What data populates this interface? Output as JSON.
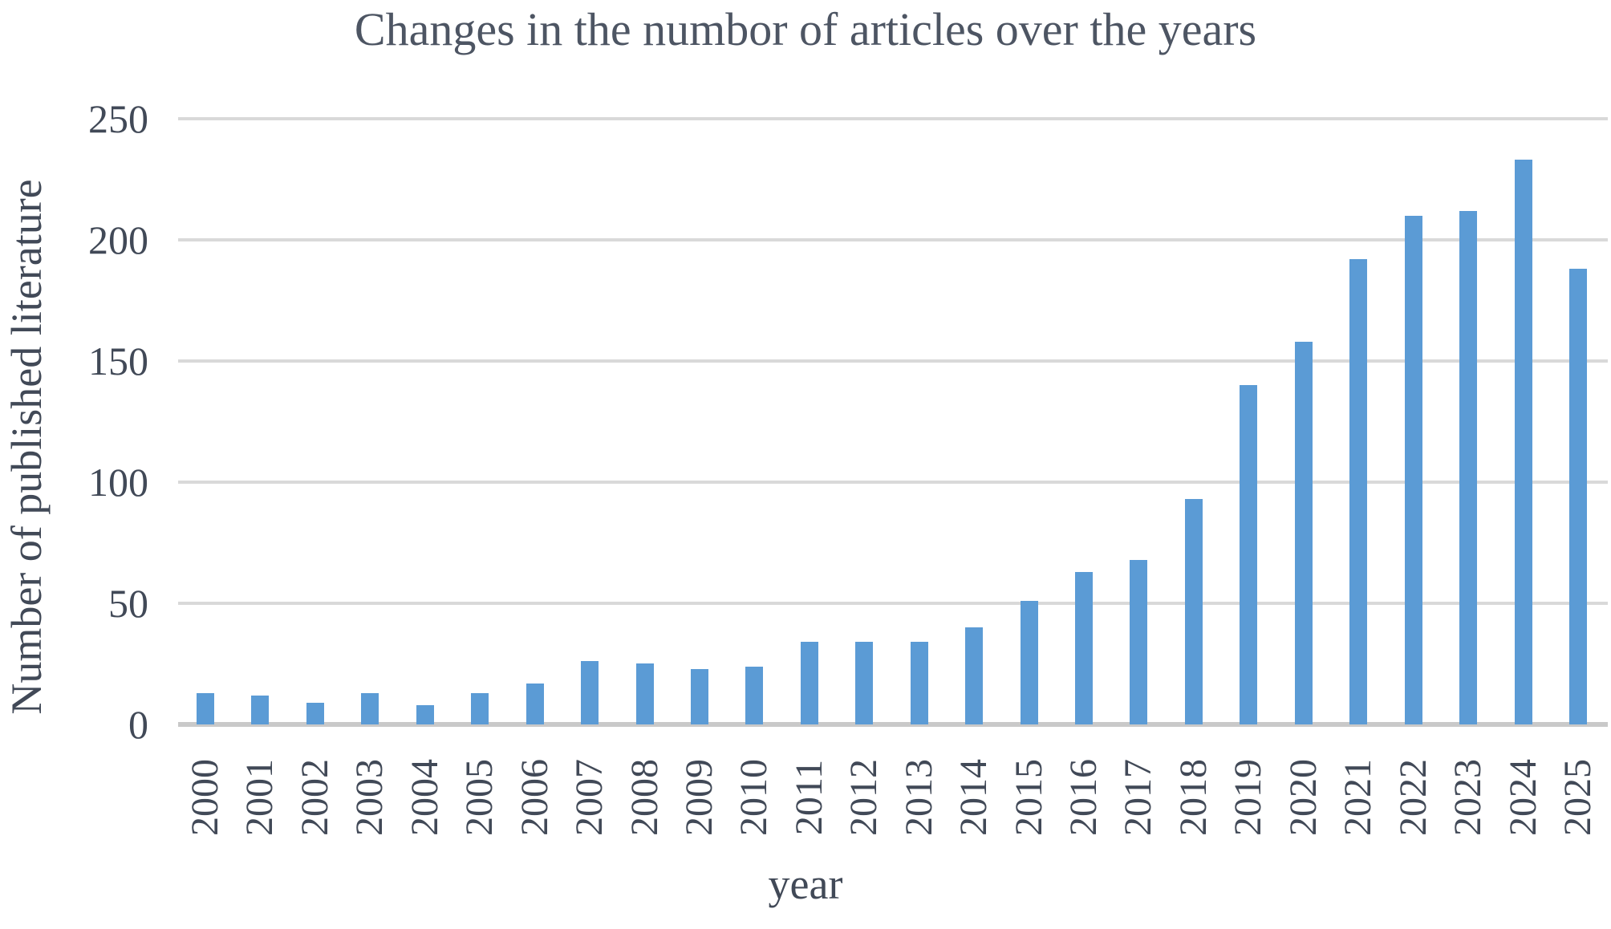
{
  "title": "Changes in the numbor of articles over the years",
  "chart_data": {
    "type": "bar",
    "title": "Changes in the numbor of articles over the years",
    "xlabel": "year",
    "ylabel": "Number of published literature",
    "categories": [
      "2000",
      "2001",
      "2002",
      "2003",
      "2004",
      "2005",
      "2006",
      "2007",
      "2008",
      "2009",
      "2010",
      "2011",
      "2012",
      "2013",
      "2014",
      "2015",
      "2016",
      "2017",
      "2018",
      "2019",
      "2020",
      "2021",
      "2022",
      "2023",
      "2024",
      "2025"
    ],
    "values": [
      13,
      12,
      9,
      13,
      8,
      13,
      17,
      26,
      25,
      23,
      24,
      34,
      34,
      34,
      40,
      51,
      63,
      68,
      93,
      140,
      158,
      192,
      210,
      212,
      233,
      188
    ],
    "ylim": [
      0,
      250
    ],
    "yticks": [
      0,
      50,
      100,
      150,
      200,
      250
    ],
    "grid": true,
    "legend": "none",
    "bar_color": "#5b9bd5",
    "gridline_color": "#d9d9d9",
    "axis_line_color": "#c9c9c9",
    "text_color": "#414957",
    "title_color": "#4d5563"
  }
}
